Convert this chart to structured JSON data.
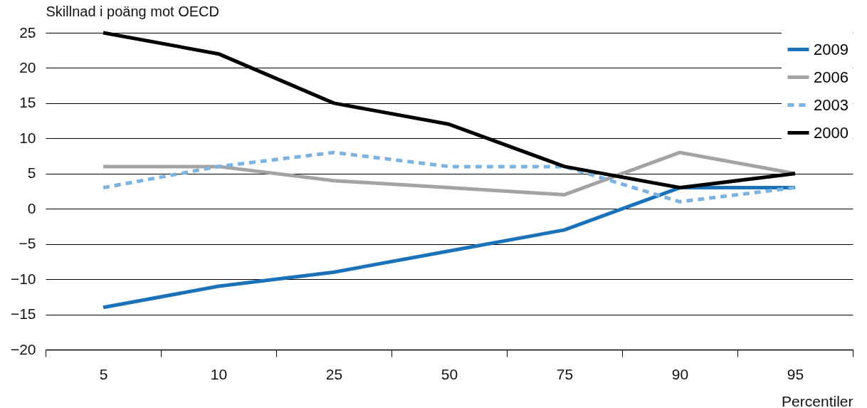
{
  "chart_data": {
    "type": "line",
    "ylabel": "Skillnad i poäng mot OECD",
    "xlabel": "Percentiler",
    "categories": [
      "5",
      "10",
      "25",
      "50",
      "75",
      "90",
      "95"
    ],
    "series": [
      {
        "name": "2009",
        "color": "#1b72b8",
        "values": [
          -14,
          -11,
          -9,
          -6,
          -3,
          3,
          3
        ],
        "line_style": "solid"
      },
      {
        "name": "2006",
        "color": "#a3a3a3",
        "values": [
          6,
          6,
          4,
          3,
          2,
          8,
          5
        ],
        "line_style": "solid"
      },
      {
        "name": "2003",
        "color": "#7db3de",
        "values": [
          3,
          6,
          8,
          6,
          6,
          1,
          3
        ],
        "line_style": "dotted"
      },
      {
        "name": "2000",
        "color": "#000000",
        "values": [
          25,
          22,
          15,
          12,
          6,
          3,
          5
        ],
        "line_style": "solid"
      }
    ],
    "ylim": [
      -20,
      25
    ],
    "yticks": [
      -20,
      -15,
      -10,
      -5,
      0,
      5,
      10,
      15,
      20,
      25
    ],
    "grid": "y",
    "legend": "top right",
    "marker": "none"
  }
}
